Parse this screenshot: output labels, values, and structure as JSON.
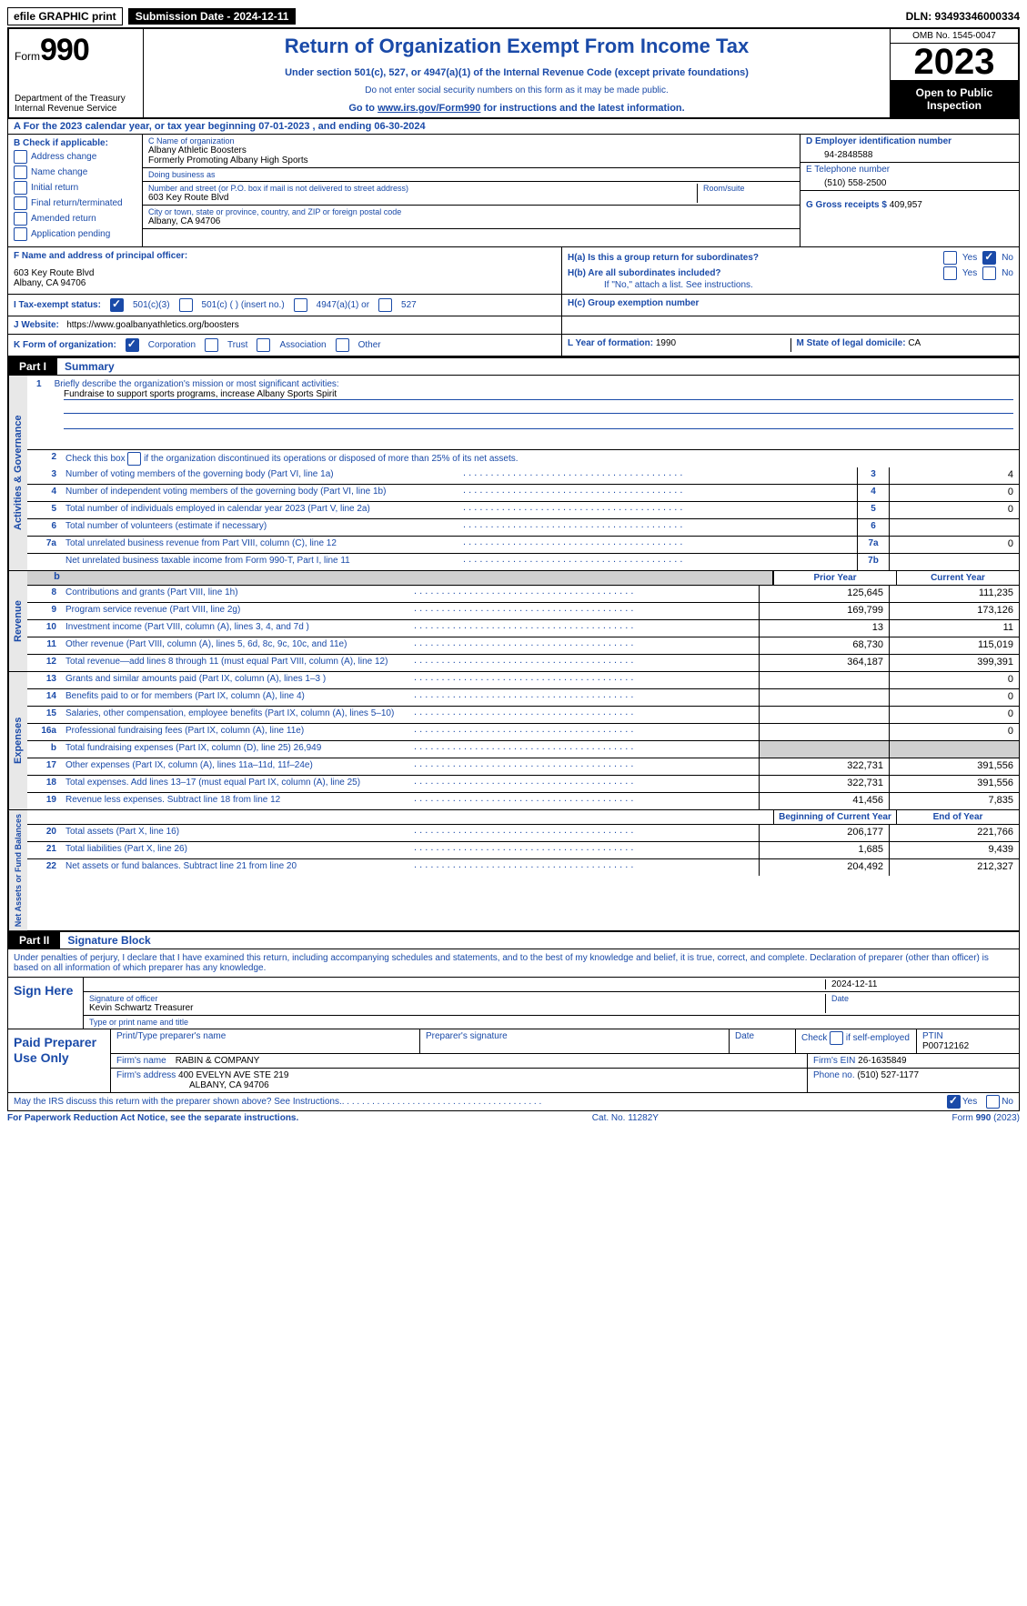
{
  "top": {
    "efile": "efile GRAPHIC print",
    "submission": "Submission Date - 2024-12-11",
    "dln": "DLN: 93493346000334"
  },
  "header": {
    "form_prefix": "Form",
    "form_no": "990",
    "dept": "Department of the Treasury Internal Revenue Service",
    "title": "Return of Organization Exempt From Income Tax",
    "sub1": "Under section 501(c), 527, or 4947(a)(1) of the Internal Revenue Code (except private foundations)",
    "sub2": "Do not enter social security numbers on this form as it may be made public.",
    "sub3_pre": "Go to ",
    "sub3_link": "www.irs.gov/Form990",
    "sub3_post": " for instructions and the latest information.",
    "omb": "OMB No. 1545-0047",
    "year": "2023",
    "open_pub": "Open to Public Inspection"
  },
  "rowA": "A  For the 2023 calendar year, or tax year beginning 07-01-2023    , and ending 06-30-2024",
  "B": {
    "header": "B Check if applicable:",
    "items": [
      "Address change",
      "Name change",
      "Initial return",
      "Final return/terminated",
      "Amended return",
      "Application pending"
    ]
  },
  "C": {
    "name_label": "C Name of organization",
    "name": "Albany Athletic Boosters",
    "formerly": "Formerly Promoting Albany High Sports",
    "dba_label": "Doing business as",
    "dba": "",
    "street_label": "Number and street (or P.O. box if mail is not delivered to street address)",
    "street": "603 Key Route Blvd",
    "room_label": "Room/suite",
    "room": "",
    "city_label": "City or town, state or province, country, and ZIP or foreign postal code",
    "city": "Albany, CA  94706"
  },
  "D": {
    "label": "D Employer identification number",
    "value": "94-2848588"
  },
  "E": {
    "label": "E Telephone number",
    "value": "(510) 558-2500"
  },
  "G": {
    "label": "G Gross receipts $",
    "value": "409,957"
  },
  "F": {
    "label": "F  Name and address of principal officer:",
    "name": "",
    "addr1": "603 Key Route Blvd",
    "addr2": "Albany, CA  94706"
  },
  "H": {
    "a_label": "H(a)  Is this a group return for subordinates?",
    "a_yes": false,
    "a_no": true,
    "b_label": "H(b)  Are all subordinates included?",
    "b_yes": false,
    "b_no": false,
    "b_note": "If \"No,\" attach a list. See instructions.",
    "c_label": "H(c)  Group exemption number",
    "c_value": ""
  },
  "I": {
    "label": "I  Tax-exempt status:",
    "c501c3": true,
    "c501c": false,
    "insert": "(insert no.)",
    "c4947": false,
    "c527": false
  },
  "J": {
    "label": "J  Website:",
    "value": "https://www.goalbanyathletics.org/boosters"
  },
  "K": {
    "label": "K Form of organization:",
    "corp": true,
    "trust": false,
    "assoc": false,
    "other": false
  },
  "L": {
    "label": "L Year of formation:",
    "value": "1990"
  },
  "M": {
    "label": "M State of legal domicile:",
    "value": "CA"
  },
  "part1": {
    "label": "Part I",
    "title": "Summary",
    "line1_label": "Briefly describe the organization's mission or most significant activities:",
    "line1_text": "Fundraise to support sports programs, increase Albany Sports Spirit",
    "line2": "Check this box      if the organization discontinued its operations or disposed of more than 25% of its net assets.",
    "gov_label": "Activities & Governance",
    "rev_label": "Revenue",
    "exp_label": "Expenses",
    "net_label": "Net Assets or Fund Balances",
    "prior_hdr": "Prior Year",
    "current_hdr": "Current Year",
    "boy_hdr": "Beginning of Current Year",
    "eoy_hdr": "End of Year",
    "gov_rows": [
      {
        "n": "3",
        "desc": "Number of voting members of the governing body (Part VI, line 1a)",
        "box": "3",
        "val": "4"
      },
      {
        "n": "4",
        "desc": "Number of independent voting members of the governing body (Part VI, line 1b)",
        "box": "4",
        "val": "0"
      },
      {
        "n": "5",
        "desc": "Total number of individuals employed in calendar year 2023 (Part V, line 2a)",
        "box": "5",
        "val": "0"
      },
      {
        "n": "6",
        "desc": "Total number of volunteers (estimate if necessary)",
        "box": "6",
        "val": ""
      },
      {
        "n": "7a",
        "desc": "Total unrelated business revenue from Part VIII, column (C), line 12",
        "box": "7a",
        "val": "0"
      },
      {
        "n": "",
        "desc": "Net unrelated business taxable income from Form 990-T, Part I, line 11",
        "box": "7b",
        "val": ""
      }
    ],
    "rev_rows": [
      {
        "n": "8",
        "desc": "Contributions and grants (Part VIII, line 1h)",
        "prior": "125,645",
        "curr": "111,235"
      },
      {
        "n": "9",
        "desc": "Program service revenue (Part VIII, line 2g)",
        "prior": "169,799",
        "curr": "173,126"
      },
      {
        "n": "10",
        "desc": "Investment income (Part VIII, column (A), lines 3, 4, and 7d )",
        "prior": "13",
        "curr": "11"
      },
      {
        "n": "11",
        "desc": "Other revenue (Part VIII, column (A), lines 5, 6d, 8c, 9c, 10c, and 11e)",
        "prior": "68,730",
        "curr": "115,019"
      },
      {
        "n": "12",
        "desc": "Total revenue—add lines 8 through 11 (must equal Part VIII, column (A), line 12)",
        "prior": "364,187",
        "curr": "399,391"
      }
    ],
    "exp_rows": [
      {
        "n": "13",
        "desc": "Grants and similar amounts paid (Part IX, column (A), lines 1–3 )",
        "prior": "",
        "curr": "0"
      },
      {
        "n": "14",
        "desc": "Benefits paid to or for members (Part IX, column (A), line 4)",
        "prior": "",
        "curr": "0"
      },
      {
        "n": "15",
        "desc": "Salaries, other compensation, employee benefits (Part IX, column (A), lines 5–10)",
        "prior": "",
        "curr": "0"
      },
      {
        "n": "16a",
        "desc": "Professional fundraising fees (Part IX, column (A), line 11e)",
        "prior": "",
        "curr": "0"
      },
      {
        "n": "b",
        "desc": "Total fundraising expenses (Part IX, column (D), line 25) 26,949",
        "prior": "shaded",
        "curr": "shaded"
      },
      {
        "n": "17",
        "desc": "Other expenses (Part IX, column (A), lines 11a–11d, 11f–24e)",
        "prior": "322,731",
        "curr": "391,556"
      },
      {
        "n": "18",
        "desc": "Total expenses. Add lines 13–17 (must equal Part IX, column (A), line 25)",
        "prior": "322,731",
        "curr": "391,556"
      },
      {
        "n": "19",
        "desc": "Revenue less expenses. Subtract line 18 from line 12",
        "prior": "41,456",
        "curr": "7,835"
      }
    ],
    "net_rows": [
      {
        "n": "20",
        "desc": "Total assets (Part X, line 16)",
        "prior": "206,177",
        "curr": "221,766"
      },
      {
        "n": "21",
        "desc": "Total liabilities (Part X, line 26)",
        "prior": "1,685",
        "curr": "9,439"
      },
      {
        "n": "22",
        "desc": "Net assets or fund balances. Subtract line 21 from line 20",
        "prior": "204,492",
        "curr": "212,327"
      }
    ]
  },
  "part2": {
    "label": "Part II",
    "title": "Signature Block",
    "decl": "Under penalties of perjury, I declare that I have examined this return, including accompanying schedules and statements, and to the best of my knowledge and belief, it is true, correct, and complete. Declaration of preparer (other than officer) is based on all information of which preparer has any knowledge.",
    "sign_here": "Sign Here",
    "sig_officer_label": "Signature of officer",
    "sig_officer": "Kevin Schwartz  Treasurer",
    "sig_type_label": "Type or print name and title",
    "sig_date_label": "Date",
    "sig_date": "2024-12-11",
    "paid_prep": "Paid Preparer Use Only",
    "prep_name_label": "Print/Type preparer's name",
    "prep_name": "",
    "prep_sig_label": "Preparer's signature",
    "prep_date_label": "Date",
    "prep_check_label": "Check        if self-employed",
    "prep_check": false,
    "ptin_label": "PTIN",
    "ptin": "P00712162",
    "firm_name_label": "Firm's name",
    "firm_name": "RABIN & COMPANY",
    "firm_ein_label": "Firm's EIN",
    "firm_ein": "26-1635849",
    "firm_addr_label": "Firm's address",
    "firm_addr1": "400 EVELYN AVE STE 219",
    "firm_addr2": "ALBANY, CA  94706",
    "firm_phone_label": "Phone no.",
    "firm_phone": "(510) 527-1177",
    "may_irs": "May the IRS discuss this return with the preparer shown above? See Instructions.",
    "may_yes": true,
    "may_no": false
  },
  "footer": {
    "paperwork": "For Paperwork Reduction Act Notice, see the separate instructions.",
    "cat": "Cat. No. 11282Y",
    "form": "Form 990 (2023)"
  },
  "colors": {
    "link": "#1a4aa8",
    "shaded": "#d0d0d0",
    "vert_bg": "#e8e8e8"
  }
}
